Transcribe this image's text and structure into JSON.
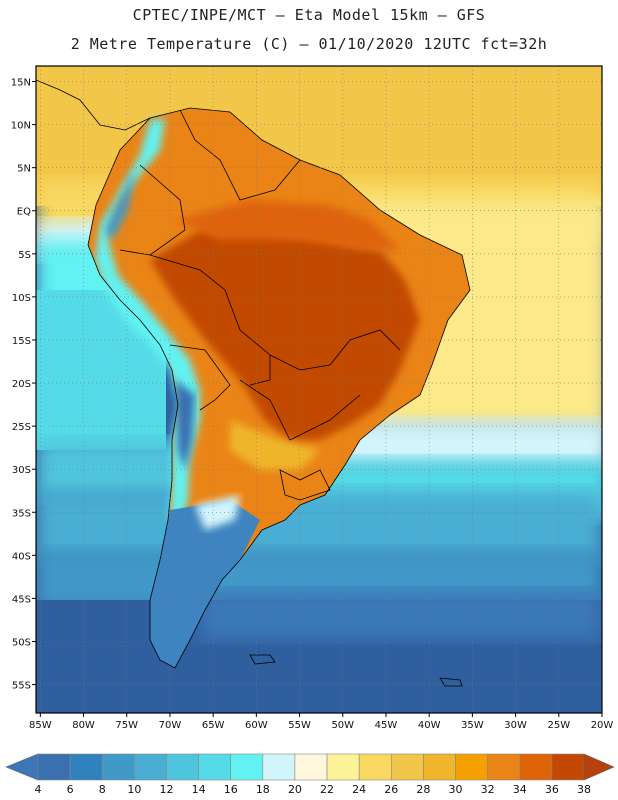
{
  "header": {
    "line1": "CPTEC/INPE/MCT –  Eta Model 15km – GFS",
    "line2": "2 Metre Temperature (C) – 01/10/2020 12UTC fct=32h"
  },
  "map": {
    "lat_ticks": [
      "15N",
      "10N",
      "5N",
      "EQ",
      "5S",
      "10S",
      "15S",
      "20S",
      "25S",
      "30S",
      "35S",
      "40S",
      "45S",
      "50S",
      "55S"
    ],
    "lon_ticks": [
      "85W",
      "80W",
      "75W",
      "70W",
      "65W",
      "60W",
      "55W",
      "50W",
      "45W",
      "40W",
      "35W",
      "30W",
      "25W",
      "20W"
    ],
    "lat_values": [
      15,
      10,
      5,
      0,
      -5,
      -10,
      -15,
      -20,
      -25,
      -30,
      -35,
      -40,
      -45,
      -50,
      -55
    ],
    "lon_values": [
      -85,
      -80,
      -75,
      -70,
      -65,
      -60,
      -55,
      -50,
      -45,
      -40,
      -35,
      -30,
      -25,
      -20
    ],
    "extent": {
      "lon_min": -85.5,
      "lon_max": -20,
      "lat_min": -58.3,
      "lat_max": 16.8
    }
  },
  "colorbar": {
    "labels": [
      "4",
      "6",
      "8",
      "10",
      "12",
      "14",
      "16",
      "18",
      "20",
      "22",
      "24",
      "26",
      "28",
      "30",
      "32",
      "34",
      "36",
      "38"
    ],
    "colors": [
      "#3a6fb0",
      "#2f82be",
      "#4199c8",
      "#4aaed3",
      "#4fc4dd",
      "#55dbe7",
      "#62f2f2",
      "#d2f5fb",
      "#fff8dc",
      "#fff39a",
      "#f8d861",
      "#f2c648",
      "#efb52c",
      "#f4a000",
      "#ea8416",
      "#df6408",
      "#c24804"
    ],
    "low_color": "#3d76b7",
    "high_color": "#b8400c"
  }
}
